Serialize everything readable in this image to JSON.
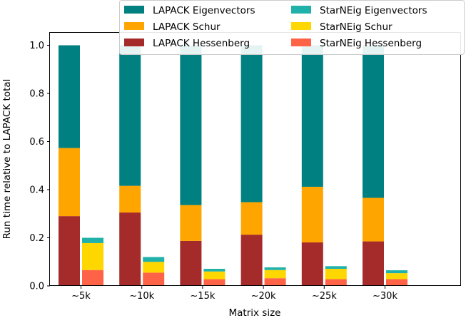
{
  "chart_data": {
    "type": "bar",
    "subtype": "stacked-grouped",
    "title": "",
    "xlabel": "Matrix size",
    "ylabel": "Run time relative to LAPACK total",
    "ylim": [
      0,
      1.0
    ],
    "y_ticks": [
      0.0,
      0.2,
      0.4,
      0.6,
      0.8,
      1.0
    ],
    "y_tick_labels": [
      "0.0",
      "0.2",
      "0.4",
      "0.6",
      "0.8",
      "1.0"
    ],
    "categories": [
      "~5k",
      "~10k",
      "~15k",
      "~20k",
      "~25k",
      "~30k"
    ],
    "legend_position": "top-right",
    "groups": [
      {
        "name": "LAPACK",
        "series": [
          {
            "name": "LAPACK Hessenberg",
            "color": "#A52A2A",
            "values": [
              0.29,
              0.305,
              0.187,
              0.213,
              0.181,
              0.185
            ]
          },
          {
            "name": "LAPACK Schur",
            "color": "#FFA500",
            "values": [
              0.283,
              0.111,
              0.149,
              0.135,
              0.231,
              0.181
            ]
          },
          {
            "name": "LAPACK Eigenvectors",
            "color": "#008080",
            "values": [
              0.427,
              0.584,
              0.664,
              0.652,
              0.588,
              0.634
            ]
          }
        ]
      },
      {
        "name": "StarNEig",
        "series": [
          {
            "name": "StarNEig Hessenberg",
            "color": "#FF6347",
            "values": [
              0.066,
              0.055,
              0.028,
              0.032,
              0.028,
              0.028
            ]
          },
          {
            "name": "StarNEig Schur",
            "color": "#FFD700",
            "values": [
              0.112,
              0.045,
              0.032,
              0.034,
              0.043,
              0.025
            ]
          },
          {
            "name": "StarNEig Eigenvectors",
            "color": "#20B2AA",
            "values": [
              0.022,
              0.02,
              0.011,
              0.011,
              0.011,
              0.012
            ]
          }
        ]
      }
    ],
    "legend": [
      {
        "label": "LAPACK Eigenvectors",
        "color": "#008080"
      },
      {
        "label": "StarNEig Eigenvectors",
        "color": "#20B2AA"
      },
      {
        "label": "LAPACK Schur",
        "color": "#FFA500"
      },
      {
        "label": "StarNEig Schur",
        "color": "#FFD700"
      },
      {
        "label": "LAPACK Hessenberg",
        "color": "#A52A2A"
      },
      {
        "label": "StarNEig Hessenberg",
        "color": "#FF6347"
      }
    ]
  }
}
